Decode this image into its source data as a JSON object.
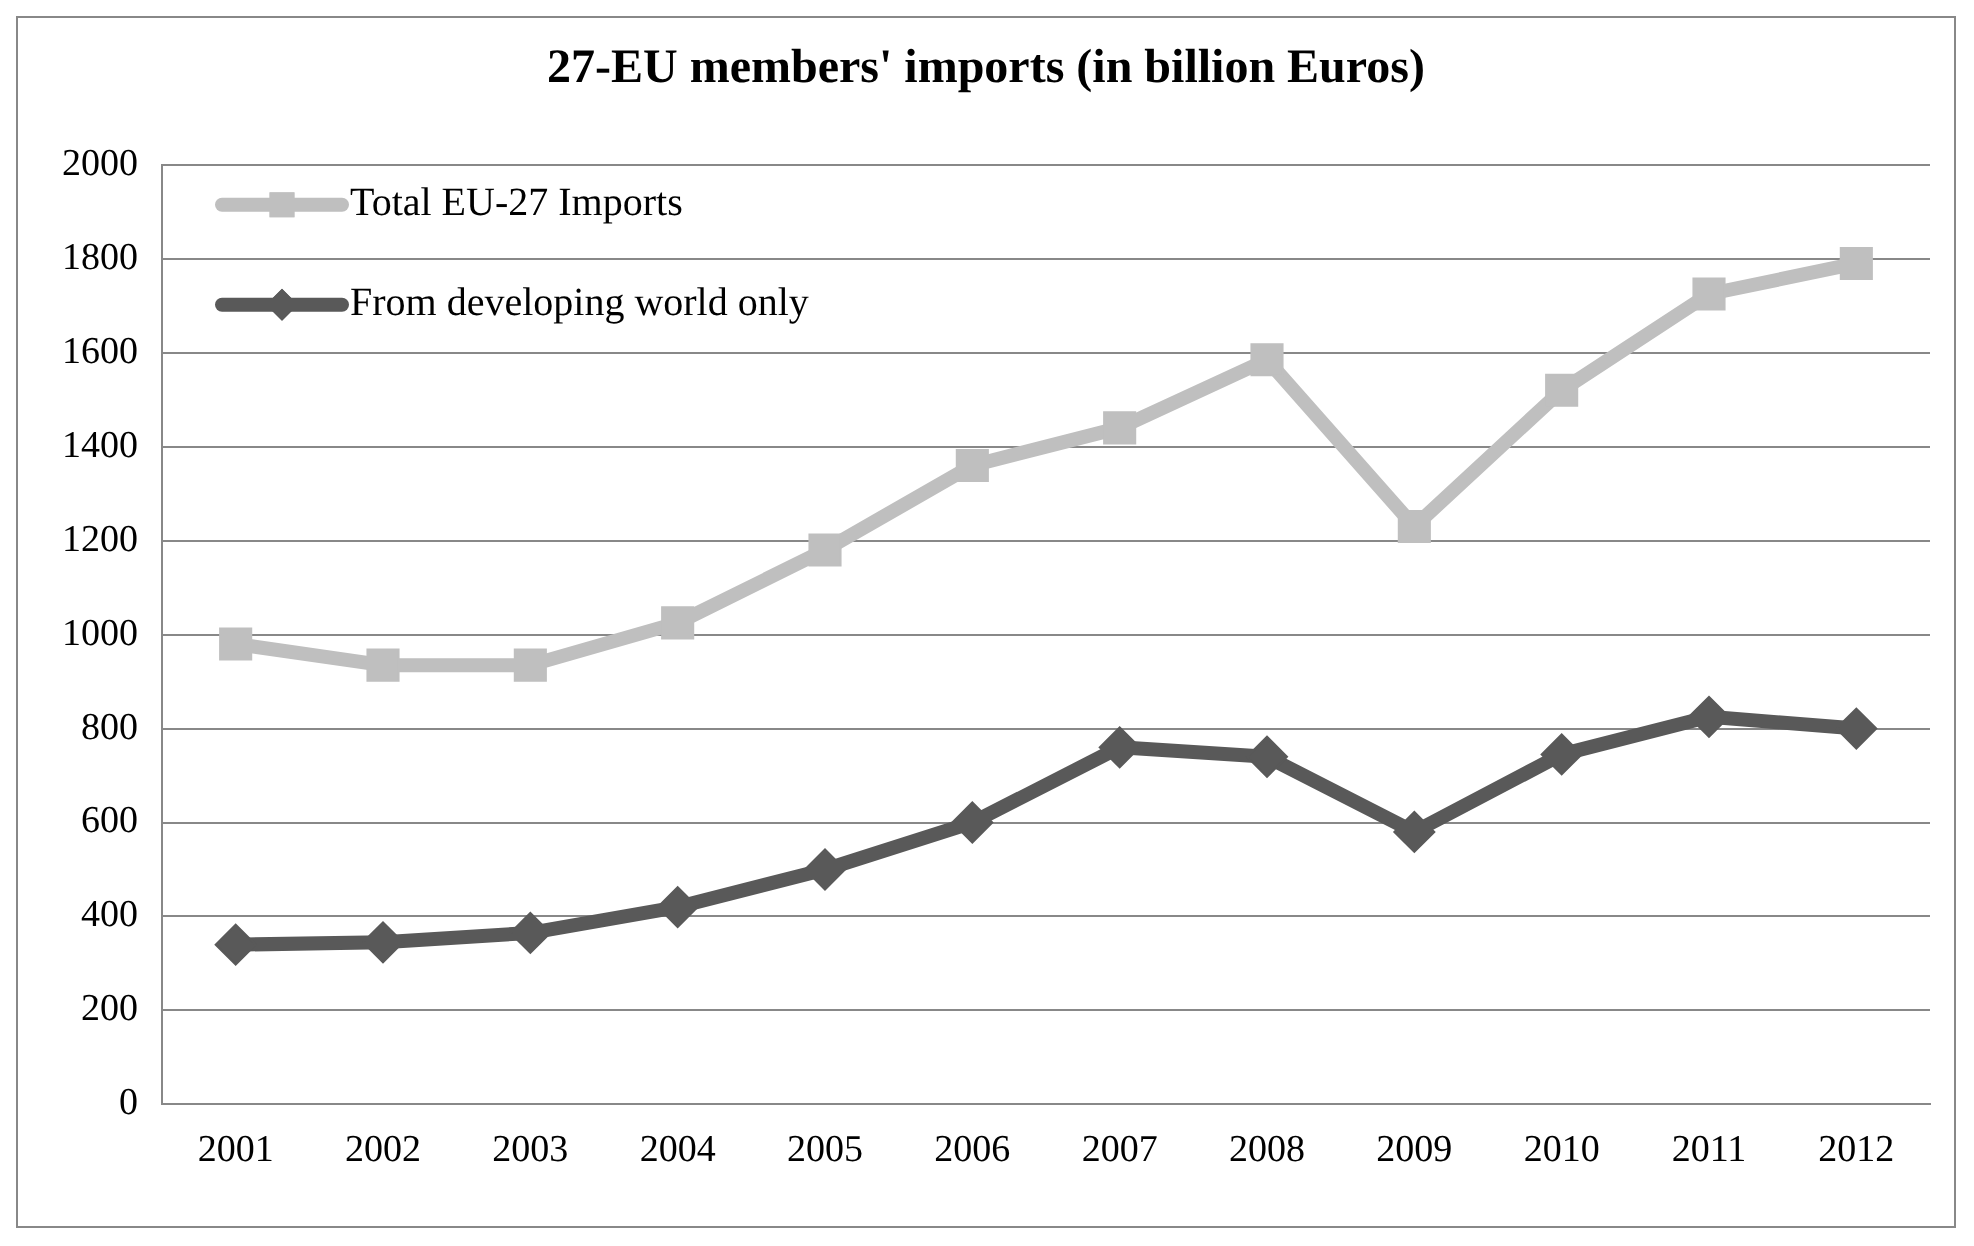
{
  "chart_data": {
    "type": "line",
    "title": "27-EU members' imports (in billion Euros)",
    "categories": [
      "2001",
      "2002",
      "2003",
      "2004",
      "2005",
      "2006",
      "2007",
      "2008",
      "2009",
      "2010",
      "2011",
      "2012"
    ],
    "series": [
      {
        "name": "Total EU-27 Imports",
        "color": "#bfbfbf",
        "marker": "square",
        "values": [
          980,
          935,
          935,
          1025,
          1180,
          1360,
          1440,
          1585,
          1230,
          1520,
          1725,
          1790
        ]
      },
      {
        "name": "From developing world only",
        "color": "#595959",
        "marker": "diamond",
        "values": [
          340,
          345,
          365,
          420,
          500,
          600,
          760,
          740,
          580,
          745,
          825,
          800
        ]
      }
    ],
    "ylim": [
      0,
      2000
    ],
    "yticks": [
      0,
      200,
      400,
      600,
      800,
      1000,
      1200,
      1400,
      1600,
      1800,
      2000
    ],
    "grid": "y",
    "legend": "top left",
    "line_style": "solid"
  }
}
